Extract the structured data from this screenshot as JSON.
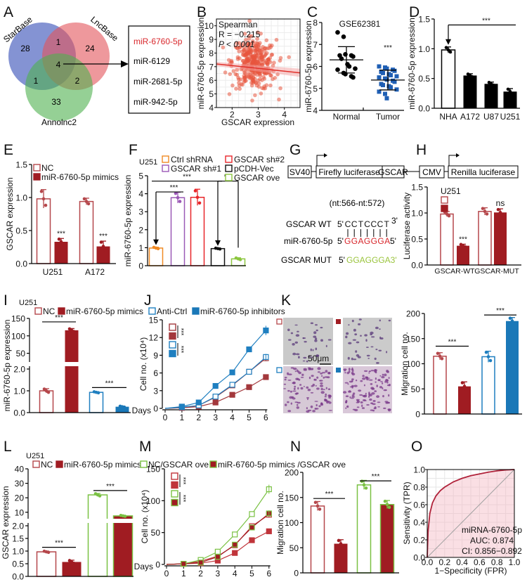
{
  "panel_letters": [
    "A",
    "B",
    "C",
    "D",
    "E",
    "F",
    "G",
    "H",
    "I",
    "J",
    "K",
    "L",
    "M",
    "N",
    "O"
  ],
  "colors": {
    "nc_red": "#b5474b",
    "dark_red": "#a01c22",
    "blue": "#1f7fc0",
    "green": "#7ac143",
    "orange": "#f08a24",
    "purple": "#9b59b6",
    "red": "#e8262a",
    "highlight": "#d8262b"
  },
  "panel_G": {
    "boxes": [
      "SV40",
      "Firefly luciferase",
      "GSCAR",
      "CMV",
      "Renilla luciferase"
    ],
    "site": "(nt:566-nt:572)",
    "wt_label": "GSCAR WT",
    "wt_prefix": "5'",
    "wt_seq": [
      "C",
      "C",
      "T",
      "C",
      "C",
      "C",
      "T"
    ],
    "wt_suffix": "3'",
    "mir_label": "miR-6760-5p",
    "mir_prefix": "5'",
    "mir_seq": "GGAGGGA",
    "mir_suffix": "5'",
    "mut_label": "GSCAR MUT",
    "mut_prefix": "5'",
    "mut_seq": "GGAGGGA3'"
  },
  "panel_K_images": {
    "scale_bar": "50μm"
  },
  "chart_data": [
    {
      "id": "A",
      "type": "venn",
      "sets": [
        "StarBase",
        "LncBase",
        "Annolnc2"
      ],
      "regions": {
        "StarBase_only": 28,
        "LncBase_only": 24,
        "Annolnc2_only": 33,
        "StarBase_LncBase": 1,
        "StarBase_Annolnc2": 1,
        "LncBase_Annolnc2": 2,
        "all": 4
      },
      "overlap_mirnas": [
        "miR-6760-5p",
        "miR-6129",
        "miR-2681-5p",
        "miR-942-5p"
      ]
    },
    {
      "id": "B",
      "type": "scatter",
      "xlabel": "GSCAR expression",
      "ylabel": "miR-6760-5p expression",
      "xticks": [
        2,
        3,
        4
      ],
      "yticks": [
        4,
        5,
        6,
        7,
        8,
        9,
        10
      ],
      "xlim": [
        1.4,
        4.6
      ],
      "ylim": [
        4,
        10.5
      ],
      "annotation": [
        "Spearman",
        "R = −0.215",
        "P < 0.001"
      ],
      "trend": {
        "x": [
          1.4,
          4.6
        ],
        "y": [
          7.2,
          6.55
        ]
      },
      "n_points_approx": 350,
      "color": "#e8553e"
    },
    {
      "id": "C",
      "type": "scatter",
      "title": "GSE62381",
      "ylabel": "miR-6760-5p expression",
      "yticks": [
        4,
        5,
        6,
        7,
        8
      ],
      "ylim": [
        4,
        8
      ],
      "categories": [
        "Normal",
        "Tumor"
      ],
      "series": [
        {
          "name": "Normal",
          "color": "#000000",
          "marker": "circle",
          "mean": 6.3,
          "sd": 0.6,
          "values": [
            7.55,
            7.35,
            6.55,
            6.5,
            6.45,
            6.5,
            6.35,
            6.1,
            6.0,
            5.9,
            5.85,
            5.7,
            5.65,
            5.55,
            5.5
          ]
        },
        {
          "name": "Tumor",
          "color": "#1f5fb4",
          "marker": "square",
          "mean": 5.38,
          "sd": 0.45,
          "values": [
            6.0,
            5.95,
            5.9,
            5.85,
            5.8,
            5.75,
            5.7,
            5.65,
            5.6,
            5.55,
            5.5,
            5.45,
            5.4,
            5.35,
            5.3,
            5.2,
            5.15,
            5.1,
            5.05,
            4.95,
            4.85,
            4.75,
            4.55
          ]
        }
      ],
      "sig": "***"
    },
    {
      "id": "D",
      "type": "bar",
      "ylabel": "miR-6760-5p expression",
      "ylim": [
        0,
        1.5
      ],
      "yticks": [
        0,
        0.5,
        1,
        1.5
      ],
      "ytick_labels": [
        "0.0",
        "0.5",
        "1.0",
        "1.5"
      ],
      "categories": [
        "NHA",
        "A172",
        "U87",
        "U251"
      ],
      "series": [
        {
          "color": "#000000",
          "filled": false
        },
        {
          "color": "#000000",
          "filled": true
        }
      ],
      "bars": [
        {
          "s": 0,
          "v": 0.98,
          "e": 0.05
        },
        {
          "s": 1,
          "v": 0.55,
          "e": 0.03
        },
        {
          "s": 1,
          "v": 0.41,
          "e": 0.03
        },
        {
          "s": 1,
          "v": 0.28,
          "e": 0.05
        }
      ],
      "sig": [
        {
          "type": "arrow",
          "from": 0,
          "to": 3,
          "y": 1.4,
          "text": "***"
        }
      ]
    },
    {
      "id": "E",
      "type": "bar",
      "ylabel": "GSCAR expression",
      "ylim": [
        0,
        1.5
      ],
      "yticks": [
        0,
        0.5,
        1,
        1.5
      ],
      "ytick_labels": [
        "0.0",
        "0.5",
        "1.0",
        "1.5"
      ],
      "categories": [
        "U251",
        "A172"
      ],
      "series": [
        {
          "name": "NC",
          "color": "#b5474b",
          "filled": false
        },
        {
          "name": "miR-6760-5p mimics",
          "color": "#a01c22",
          "filled": true
        }
      ],
      "bars": [
        {
          "s": 0,
          "v": 0.98,
          "e": 0.14
        },
        {
          "s": 1,
          "v": 0.33,
          "e": 0.05,
          "sig": "***"
        },
        {
          "s": 0,
          "v": 0.94,
          "e": 0.05
        },
        {
          "s": 1,
          "v": 0.26,
          "e": 0.08,
          "sig": "***"
        }
      ],
      "sig": []
    },
    {
      "id": "F",
      "type": "bar",
      "cell_line": "U251",
      "ylabel": "miR-6760-5p expression",
      "ylim": [
        0,
        5
      ],
      "yticks": [
        0,
        1,
        2,
        3,
        4,
        5
      ],
      "ytick_labels": [
        "0",
        "1",
        "2",
        "3",
        "4",
        "5"
      ],
      "series": [
        {
          "name": "Ctrl shRNA",
          "color": "#f08a24",
          "filled": false
        },
        {
          "name": "GSCAR sh#1",
          "color": "#9b59b6",
          "filled": false
        },
        {
          "name": "GSCAR sh#2",
          "color": "#e8262a",
          "filled": false
        },
        {
          "name": "pCDH-Vec",
          "color": "#111111",
          "filled": false
        },
        {
          "name": "GSCAR ove",
          "color": "#8cc63f",
          "filled": false
        }
      ],
      "bars": [
        {
          "s": 0,
          "v": 0.98,
          "e": 0.05
        },
        {
          "s": 1,
          "v": 3.78,
          "e": 0.3
        },
        {
          "s": 2,
          "v": 3.8,
          "e": 0.45
        },
        {
          "s": 3,
          "v": 0.95,
          "e": 0.03
        },
        {
          "s": 4,
          "v": 0.38,
          "e": 0.06
        }
      ],
      "sig": [
        {
          "type": "arrow",
          "from": 0,
          "to": 1,
          "y": 4.1,
          "text": "***"
        },
        {
          "type": "line",
          "from": 0,
          "to": 3,
          "y": 4.7,
          "text": "***"
        },
        {
          "type": "arrow",
          "from": 3,
          "to": 4,
          "y": 4.7,
          "text": "***",
          "tail": 1.0
        }
      ]
    },
    {
      "id": "H",
      "type": "bar",
      "cell_line": "U251",
      "ylabel": "Luciferase activity",
      "ylim": [
        0,
        1.5
      ],
      "yticks": [
        0,
        0.5,
        1,
        1.5
      ],
      "ytick_labels": [
        "0.0",
        "0.5",
        "1.0",
        "1.5"
      ],
      "categories": [
        "GSCAR-WT",
        "GSCAR-MUT"
      ],
      "series": [
        {
          "color": "#b5474b",
          "filled": false
        },
        {
          "color": "#a01c22",
          "filled": true
        }
      ],
      "bars": [
        {
          "s": 0,
          "v": 0.98,
          "e": 0.05
        },
        {
          "s": 1,
          "v": 0.37,
          "e": 0.03,
          "sig": "***"
        },
        {
          "s": 0,
          "v": 1.03,
          "e": 0.07
        },
        {
          "s": 1,
          "v": 1.01,
          "e": 0.07,
          "sig": "ns"
        }
      ],
      "sig": []
    },
    {
      "id": "I",
      "type": "bar",
      "cell_line": "U251",
      "ylabel": "miR-6760-5p expression",
      "ylim_segments": [
        [
          0,
          2
        ],
        [
          25,
          150
        ]
      ],
      "yticks": [
        0,
        1,
        2,
        50,
        100,
        150
      ],
      "ytick_labels": [
        "0.0",
        "1.0",
        "2.0",
        "50",
        "100",
        "150"
      ],
      "series": [
        {
          "name": "NC",
          "color": "#b5474b",
          "filled": false
        },
        {
          "name": "miR-6760-5p mimics",
          "color": "#a01c22",
          "filled": true
        },
        {
          "name": "Anti-Ctrl",
          "color": "#1f7fc0",
          "filled": false
        },
        {
          "name": "miR-6760-5p inhibitors",
          "color": "#1a78b8",
          "filled": true
        }
      ],
      "bars": [
        {
          "s": 0,
          "v": 1.0,
          "e": 0.1
        },
        {
          "s": 1,
          "v": 116,
          "e": 5
        },
        {
          "s": 2,
          "v": 0.93,
          "e": 0.03
        },
        {
          "s": 3,
          "v": 0.27,
          "e": 0.03
        }
      ],
      "sig": [
        {
          "type": "line",
          "from": 0,
          "to": 1,
          "y": 140,
          "text": "***"
        },
        {
          "type": "line",
          "from": 2,
          "to": 3,
          "y": 1.15,
          "text": "***"
        }
      ]
    },
    {
      "id": "J",
      "type": "line",
      "xlabel": "Days",
      "ylabel": "Cell no. (x10⁴)",
      "x": [
        0,
        1,
        2,
        3,
        4,
        5,
        6
      ],
      "yticks": [
        0,
        3,
        6,
        9,
        12,
        15
      ],
      "ylim": [
        0,
        15
      ],
      "series": [
        {
          "name": "NC",
          "color": "#a3383c",
          "filled": false,
          "values": [
            0,
            0.1,
            0.5,
            1.9,
            3.9,
            6.2,
            8.5
          ]
        },
        {
          "name": "miR-6760-5p mimics",
          "color": "#a3383c",
          "filled": true,
          "values": [
            0,
            0.1,
            0.3,
            1.0,
            2.3,
            3.6,
            5.3
          ]
        },
        {
          "name": "Anti-Ctrl",
          "color": "#1f7fc0",
          "filled": false,
          "values": [
            0,
            0.2,
            0.5,
            2.0,
            4.0,
            6.2,
            8.7
          ]
        },
        {
          "name": "miR-6760-5p inhibitors",
          "color": "#1f7fc0",
          "filled": true,
          "values": [
            0,
            0.3,
            1.0,
            3.8,
            6.1,
            10.0,
            13.2
          ]
        }
      ],
      "sig": [
        "***",
        "***"
      ]
    },
    {
      "id": "K",
      "type": "bar",
      "ylabel": "Migration cell no.",
      "ylim": [
        0,
        200
      ],
      "yticks": [
        0,
        50,
        100,
        150,
        200
      ],
      "ytick_labels": [
        "0",
        "50",
        "100",
        "150",
        "200"
      ],
      "series": [
        {
          "color": "#b5474b",
          "filled": false
        },
        {
          "color": "#a01c22",
          "filled": true
        },
        {
          "color": "#1f7fc0",
          "filled": false
        },
        {
          "color": "#1a78b8",
          "filled": true
        }
      ],
      "bars": [
        {
          "s": 0,
          "v": 115,
          "e": 7
        },
        {
          "s": 1,
          "v": 55,
          "e": 9
        },
        {
          "s": 2,
          "v": 114,
          "e": 11
        },
        {
          "s": 3,
          "v": 185,
          "e": 7
        }
      ],
      "sig": [
        {
          "type": "line",
          "from": 0,
          "to": 1,
          "y": 135,
          "text": "***"
        },
        {
          "type": "line",
          "from": 2,
          "to": 3,
          "y": 197,
          "text": "***"
        }
      ]
    },
    {
      "id": "L",
      "type": "bar",
      "cell_line": "U251",
      "ylabel": "GSCAR expression",
      "ylim_segments": [
        [
          0,
          2
        ],
        [
          6,
          40
        ]
      ],
      "yticks": [
        0,
        0.5,
        1,
        1.5,
        2,
        10,
        20,
        30,
        40
      ],
      "ytick_labels": [
        "0.0",
        "0.5",
        "1.0",
        "1.5",
        "2.0",
        "10",
        "20",
        "30",
        "40"
      ],
      "series": [
        {
          "name": "NC",
          "color": "#b5474b",
          "filled": false
        },
        {
          "name": "miR-6760-5p mimics",
          "color": "#a01c22",
          "filled": true
        },
        {
          "name": "NC/GSCAR ove",
          "color": "#7ac143",
          "filled": false
        },
        {
          "name": "miR-6760-5p mimics /GSCAR ove",
          "color": "#a01c22",
          "stroke": "#7ac143",
          "filled": true
        }
      ],
      "bars": [
        {
          "s": 0,
          "v": 0.97,
          "e": 0.03
        },
        {
          "s": 1,
          "v": 0.57,
          "e": 0.07
        },
        {
          "s": 2,
          "v": 22,
          "e": 1
        },
        {
          "s": 3,
          "v": 7.5,
          "e": 0.4
        }
      ],
      "sig": [
        {
          "type": "line",
          "from": 0,
          "to": 1,
          "y": 1.15,
          "text": "***"
        },
        {
          "type": "line",
          "from": 2,
          "to": 3,
          "y": 25,
          "text": "***"
        }
      ]
    },
    {
      "id": "M",
      "type": "line",
      "xlabel": "Days",
      "ylabel": "Cell no. (x10⁴)",
      "x": [
        0,
        1,
        2,
        3,
        4,
        5,
        6
      ],
      "yticks": [
        0,
        50,
        100,
        150
      ],
      "ylim": [
        0,
        150
      ],
      "series": [
        {
          "name": "NC",
          "color": "#c0343a",
          "filled": false,
          "values": [
            0,
            1,
            5,
            13,
            30,
            60,
            78
          ]
        },
        {
          "name": "miR-6760-5p mimics",
          "color": "#c0343a",
          "filled": true,
          "values": [
            0,
            1,
            2,
            6,
            18,
            38,
            52
          ]
        },
        {
          "name": "NC/GSCAR ove",
          "color": "#7ac143",
          "filled": false,
          "values": [
            0,
            1,
            7,
            20,
            47,
            79,
            118
          ]
        },
        {
          "name": "miR-6760-5p mimics /GSCAR ove",
          "color": "#a01c22",
          "stroke": "#7ac143",
          "filled": true,
          "values": [
            0,
            1,
            3,
            12,
            31,
            58,
            80
          ]
        }
      ],
      "sig": [
        "***",
        "***"
      ]
    },
    {
      "id": "N",
      "type": "bar",
      "ylabel": "Migration cell no.",
      "ylim": [
        0,
        200
      ],
      "yticks": [
        0,
        50,
        100,
        150,
        200
      ],
      "ytick_labels": [
        "0",
        "50",
        "100",
        "150",
        "200"
      ],
      "series": [
        {
          "color": "#b5474b",
          "filled": false
        },
        {
          "color": "#a01c22",
          "filled": true
        },
        {
          "color": "#7ac143",
          "filled": false
        },
        {
          "color": "#a01c22",
          "stroke": "#7ac143",
          "filled": true
        }
      ],
      "bars": [
        {
          "s": 0,
          "v": 133,
          "e": 9
        },
        {
          "s": 1,
          "v": 58,
          "e": 8
        },
        {
          "s": 2,
          "v": 175,
          "e": 9
        },
        {
          "s": 3,
          "v": 136,
          "e": 8
        }
      ],
      "sig": [
        {
          "type": "line",
          "from": 0,
          "to": 1,
          "y": 148,
          "text": "***"
        },
        {
          "type": "line",
          "from": 2,
          "to": 3,
          "y": 183,
          "text": "***"
        }
      ]
    },
    {
      "id": "O",
      "type": "line",
      "subtype": "roc",
      "xlabel": "1−Specificity (FPR)",
      "ylabel": "Sensitivity (TPR)",
      "xticks": [
        0,
        0.2,
        0.4,
        0.6,
        0.8,
        1.0
      ],
      "xtick_labels": [
        "0.0",
        "0.2",
        "0.4",
        "0.6",
        "0.8",
        "1.0"
      ],
      "yticks": [
        0,
        0.2,
        0.4,
        0.6,
        0.8,
        1.0
      ],
      "ytick_labels": [
        "0.0",
        "0.2",
        "0.4",
        "0.6",
        "0.8",
        "1.0"
      ],
      "fpr": [
        0,
        0.01,
        0.03,
        0.06,
        0.1,
        0.15,
        0.2,
        0.3,
        0.4,
        0.5,
        0.6,
        0.7,
        0.8,
        0.9,
        1
      ],
      "tpr": [
        0,
        0.3,
        0.5,
        0.62,
        0.7,
        0.76,
        0.8,
        0.86,
        0.9,
        0.93,
        0.95,
        0.97,
        0.985,
        0.995,
        1
      ],
      "annotation": [
        "miRNA-6760-5p",
        "AUC: 0.874",
        "CI: 0.856−0.892"
      ]
    }
  ]
}
